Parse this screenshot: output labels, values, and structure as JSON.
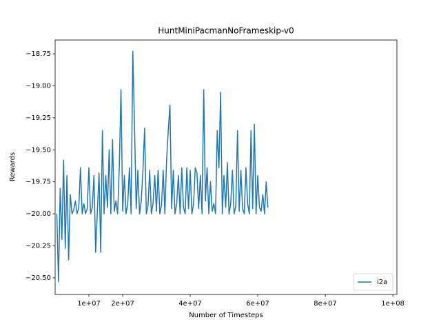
{
  "chart_data": {
    "type": "line",
    "title": "HuntMiniPacmanNoFrameskip-v0",
    "x_label": "Number of Timesteps",
    "y_label": "Rewards",
    "x": [
      500000,
      1000000,
      1500000,
      2000000,
      2500000,
      3000000,
      3500000,
      4000000,
      4500000,
      5000000,
      5500000,
      6000000,
      6500000,
      7000000,
      7500000,
      8000000,
      8500000,
      9000000,
      9500000,
      10000000,
      10500000,
      11000000,
      11500000,
      12000000,
      12500000,
      13000000,
      13500000,
      14000000,
      14500000,
      15000000,
      15500000,
      16000000,
      16500000,
      17000000,
      17500000,
      18000000,
      18500000,
      19000000,
      19500000,
      20000000,
      20500000,
      21000000,
      21500000,
      22000000,
      22500000,
      23000000,
      23500000,
      24000000,
      24500000,
      25000000,
      25500000,
      26000000,
      26500000,
      27000000,
      27500000,
      28000000,
      28500000,
      29000000,
      29500000,
      30000000,
      30500000,
      31000000,
      31500000,
      32000000,
      32500000,
      33000000,
      33500000,
      34000000,
      34500000,
      35000000,
      35500000,
      36000000,
      36500000,
      37000000,
      37500000,
      38000000,
      38500000,
      39000000,
      39500000,
      40000000,
      40500000,
      41000000,
      41500000,
      42000000,
      42500000,
      43000000,
      43500000,
      44000000,
      44500000,
      45000000,
      45500000,
      46000000,
      46500000,
      47000000,
      47500000,
      48000000,
      48500000,
      49000000,
      49500000,
      50000000,
      50500000,
      51000000,
      51500000,
      52000000,
      52500000,
      53000000,
      53500000,
      54000000,
      54500000,
      55000000,
      55500000,
      56000000,
      56500000,
      57000000,
      57500000,
      58000000,
      58500000,
      59000000,
      59500000,
      60000000,
      60500000,
      61000000,
      61500000,
      62000000,
      62500000,
      63000000
    ],
    "series": [
      {
        "name": "i2a",
        "color": "#1f77b4",
        "values": [
          -20.0,
          -20.53,
          -19.8,
          -20.2,
          -19.58,
          -20.27,
          -19.7,
          -20.36,
          -19.85,
          -20.0,
          -19.97,
          -19.9,
          -20.0,
          -19.95,
          -19.64,
          -20.0,
          -19.92,
          -20.0,
          -19.96,
          -19.64,
          -20.0,
          -19.95,
          -19.7,
          -20.3,
          -19.98,
          -19.68,
          -20.3,
          -19.35,
          -20.0,
          -19.7,
          -19.95,
          -19.5,
          -20.0,
          -19.42,
          -19.98,
          -19.9,
          -20.0,
          -19.64,
          -19.03,
          -19.98,
          -19.7,
          -20.0,
          -19.92,
          -19.64,
          -20.0,
          -18.73,
          -19.3,
          -19.96,
          -19.66,
          -20.0,
          -19.9,
          -19.66,
          -19.33,
          -20.0,
          -19.94,
          -19.66,
          -20.0,
          -19.92,
          -19.7,
          -19.98,
          -19.66,
          -20.0,
          -19.93,
          -19.66,
          -20.0,
          -19.58,
          -19.35,
          -19.15,
          -19.96,
          -19.66,
          -20.0,
          -19.92,
          -19.7,
          -20.0,
          -19.64,
          -19.95,
          -20.0,
          -19.64,
          -19.96,
          -19.66,
          -20.0,
          -19.92,
          -19.64,
          -19.68,
          -19.96,
          -19.7,
          -20.0,
          -19.03,
          -19.9,
          -19.64,
          -20.0,
          -19.75,
          -19.98,
          -19.92,
          -20.0,
          -19.35,
          -19.64,
          -19.05,
          -20.0,
          -19.7,
          -19.95,
          -19.6,
          -20.0,
          -19.92,
          -19.66,
          -20.0,
          -19.94,
          -19.35,
          -19.98,
          -19.66,
          -19.96,
          -20.0,
          -19.64,
          -19.92,
          -20.0,
          -19.35,
          -19.96,
          -19.3,
          -20.0,
          -19.7,
          -19.95,
          -19.98,
          -19.85,
          -20.0,
          -19.75,
          -19.95
        ]
      }
    ],
    "xlim": [
      0,
      101200000
    ],
    "xticks": [
      {
        "value": 10000000,
        "label": "1e+07"
      },
      {
        "value": 20000000,
        "label": "2e+07"
      },
      {
        "value": 40000000,
        "label": "4e+07"
      },
      {
        "value": 60000000,
        "label": "6e+07"
      },
      {
        "value": 80000000,
        "label": "8e+07"
      },
      {
        "value": 100000000,
        "label": "1e+08"
      }
    ],
    "ylim": [
      -20.63,
      -18.642
    ],
    "yticks": [
      {
        "value": -20.5,
        "label": "−20.50"
      },
      {
        "value": -20.25,
        "label": "−20.25"
      },
      {
        "value": -20,
        "label": "−20.00"
      },
      {
        "value": -19.75,
        "label": "−19.75"
      },
      {
        "value": -19.5,
        "label": "−19.50"
      },
      {
        "value": -19.25,
        "label": "−19.25"
      },
      {
        "value": -19,
        "label": "−19.00"
      },
      {
        "value": -18.75,
        "label": "−18.75"
      }
    ],
    "grid": false,
    "legend": "lower right"
  }
}
